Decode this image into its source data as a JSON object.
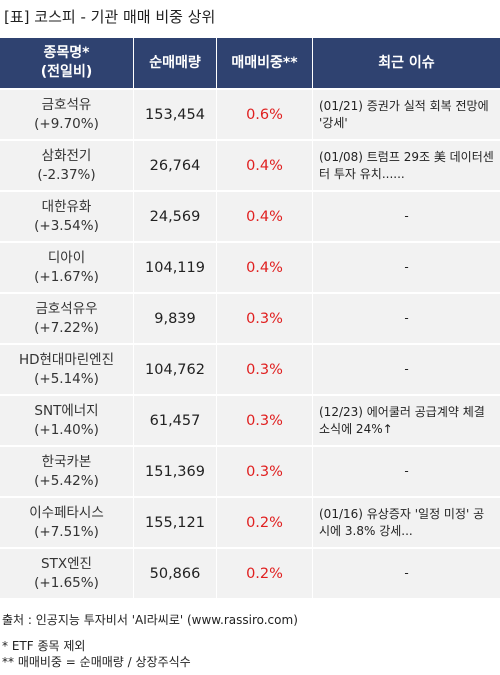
{
  "title": "[표] 코스피 - 기관 매매 비중 상위",
  "headers": {
    "name_line1": "종목명*",
    "name_line2": "(전일비)",
    "volume": "순매매량",
    "ratio": "매매비중**",
    "issue": "최근 이슈"
  },
  "rows": [
    {
      "name": "금호석유",
      "change": "(+9.70%)",
      "volume": "153,454",
      "ratio": "0.6%",
      "issue": "(01/21) 증권가 실적 회복 전망에 '강세'"
    },
    {
      "name": "삼화전기",
      "change": "(-2.37%)",
      "volume": "26,764",
      "ratio": "0.4%",
      "issue": "(01/08) 트럼프 29조 美 데이터센터 투자 유치......"
    },
    {
      "name": "대한유화",
      "change": "(+3.54%)",
      "volume": "24,569",
      "ratio": "0.4%",
      "issue": "-"
    },
    {
      "name": "디아이",
      "change": "(+1.67%)",
      "volume": "104,119",
      "ratio": "0.4%",
      "issue": "-"
    },
    {
      "name": "금호석유우",
      "change": "(+7.22%)",
      "volume": "9,839",
      "ratio": "0.3%",
      "issue": "-"
    },
    {
      "name": "HD현대마린엔진",
      "change": "(+5.14%)",
      "volume": "104,762",
      "ratio": "0.3%",
      "issue": "-"
    },
    {
      "name": "SNT에너지",
      "change": "(+1.40%)",
      "volume": "61,457",
      "ratio": "0.3%",
      "issue": "(12/23) 에어쿨러 공급계약 체결 소식에 24%↑"
    },
    {
      "name": "한국카본",
      "change": "(+5.42%)",
      "volume": "151,369",
      "ratio": "0.3%",
      "issue": "-"
    },
    {
      "name": "이수페타시스",
      "change": "(+7.51%)",
      "volume": "155,121",
      "ratio": "0.2%",
      "issue": "(01/16) 유상증자 '일정 미정' 공시에 3.8% 강세..."
    },
    {
      "name": "STX엔진",
      "change": "(+1.65%)",
      "volume": "50,866",
      "ratio": "0.2%",
      "issue": "-"
    }
  ],
  "footer": {
    "source": "출처 : 인공지능 투자비서 'AI라씨로' (www.rassiro.com)",
    "note1": "* ETF 종목 제외",
    "note2": "** 매매비중 = 순매매량 / 상장주식수"
  },
  "colors": {
    "header_bg": "#2f4270",
    "row_bg": "#f2f2f2",
    "ratio_text": "#e02020"
  }
}
